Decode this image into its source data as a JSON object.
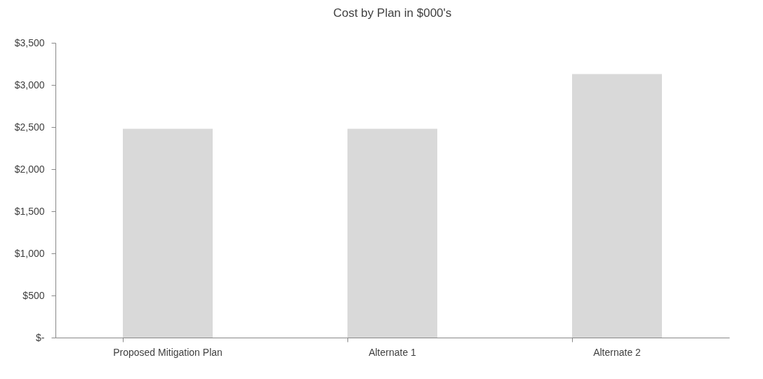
{
  "chart_data": {
    "type": "bar",
    "title": "Cost by Plan in $000's",
    "categories": [
      "Proposed Mitigation Plan",
      "Alternate 1",
      "Alternate 2"
    ],
    "values": [
      2480,
      2480,
      3130
    ],
    "color": "#d9d9d9",
    "ylim": [
      0,
      3500
    ],
    "yticks": [
      {
        "value": 0,
        "label": "$-"
      },
      {
        "value": 500,
        "label": "$500"
      },
      {
        "value": 1000,
        "label": "$1,000"
      },
      {
        "value": 1500,
        "label": "$1,500"
      },
      {
        "value": 2000,
        "label": "$2,000"
      },
      {
        "value": 2500,
        "label": "$2,500"
      },
      {
        "value": 3000,
        "label": "$3,000"
      },
      {
        "value": 3500,
        "label": "$3,500"
      }
    ],
    "grid": false
  }
}
